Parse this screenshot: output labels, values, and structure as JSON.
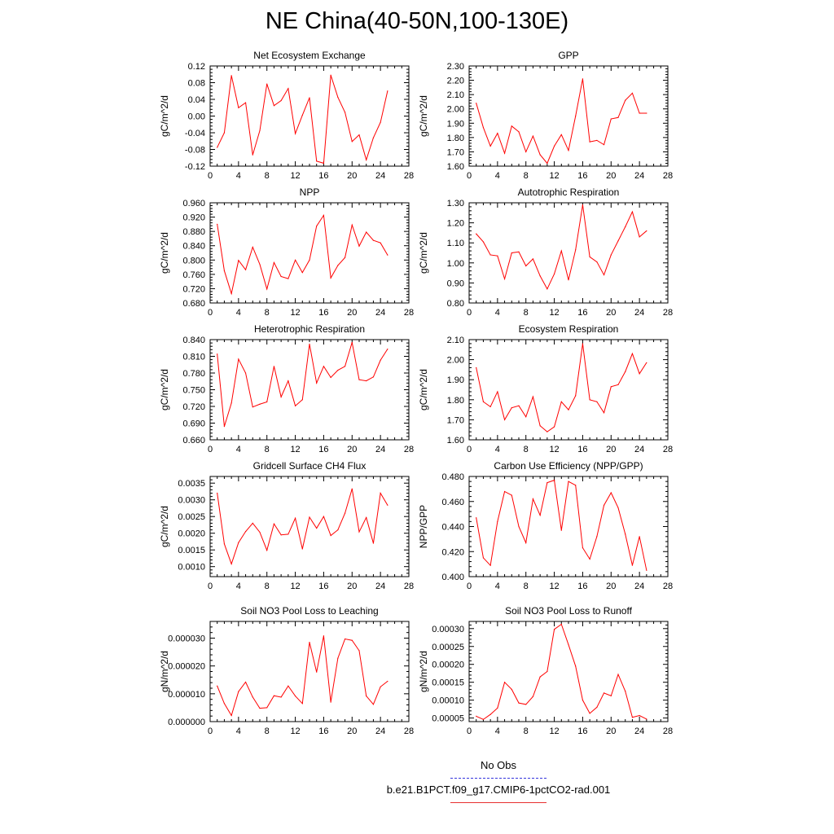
{
  "page": {
    "title": "NE China(40-50N,100-130E)"
  },
  "legend": {
    "items": [
      {
        "label": "No Obs",
        "color": "#3333dd",
        "style": "dashed"
      },
      {
        "label": "b.e21.B1PCT.f09_g17.CMIP6-1pctCO2-rad.001",
        "color": "#ff0000",
        "style": "solid"
      }
    ]
  },
  "chart_data": [
    {
      "type": "line",
      "title": "Net Ecosystem Exchange",
      "xlabel": "",
      "ylabel": "gC/m^2/d",
      "xlim": [
        0,
        28
      ],
      "xticks": [
        "0",
        "4",
        "8",
        "12",
        "16",
        "20",
        "24",
        "28"
      ],
      "ylim": [
        -0.12,
        0.12
      ],
      "yticks": [
        "-0.12",
        "-0.08",
        "-0.04",
        "0.00",
        "0.04",
        "0.08",
        "0.12"
      ],
      "x": [
        1,
        2,
        3,
        4,
        5,
        6,
        7,
        8,
        9,
        10,
        11,
        12,
        13,
        14,
        15,
        16,
        17,
        18,
        19,
        20,
        21,
        22,
        23,
        24,
        25
      ],
      "series": [
        {
          "color": "#ff0000",
          "values": [
            -0.075,
            -0.04,
            0.097,
            0.02,
            0.032,
            -0.093,
            -0.035,
            0.077,
            0.025,
            0.037,
            0.066,
            -0.042,
            0.002,
            0.044,
            -0.108,
            -0.113,
            0.098,
            0.045,
            0.009,
            -0.061,
            -0.045,
            -0.105,
            -0.052,
            -0.015,
            0.06
          ]
        }
      ]
    },
    {
      "type": "line",
      "title": "GPP",
      "xlabel": "",
      "ylabel": "gC/m^2/d",
      "xlim": [
        0,
        28
      ],
      "xticks": [
        "0",
        "4",
        "8",
        "12",
        "16",
        "20",
        "24",
        "28"
      ],
      "ylim": [
        1.6,
        2.3
      ],
      "yticks": [
        "1.60",
        "1.70",
        "1.80",
        "1.90",
        "2.00",
        "2.10",
        "2.20",
        "2.30"
      ],
      "x": [
        1,
        2,
        3,
        4,
        5,
        6,
        7,
        8,
        9,
        10,
        11,
        12,
        13,
        14,
        15,
        16,
        17,
        18,
        19,
        20,
        21,
        22,
        23,
        24,
        25
      ],
      "series": [
        {
          "color": "#ff0000",
          "values": [
            2.04,
            1.87,
            1.74,
            1.83,
            1.69,
            1.88,
            1.84,
            1.7,
            1.81,
            1.68,
            1.62,
            1.74,
            1.82,
            1.71,
            1.95,
            2.21,
            1.77,
            1.78,
            1.75,
            1.93,
            1.94,
            2.06,
            2.11,
            1.97,
            1.97
          ]
        }
      ]
    },
    {
      "type": "line",
      "title": "NPP",
      "xlabel": "",
      "ylabel": "gC/m^2/d",
      "xlim": [
        0,
        28
      ],
      "xticks": [
        "0",
        "4",
        "8",
        "12",
        "16",
        "20",
        "24",
        "28"
      ],
      "ylim": [
        0.68,
        0.96
      ],
      "yticks": [
        "0.680",
        "0.720",
        "0.760",
        "0.800",
        "0.840",
        "0.880",
        "0.920",
        "0.960"
      ],
      "x": [
        1,
        2,
        3,
        4,
        5,
        6,
        7,
        8,
        9,
        10,
        11,
        12,
        13,
        14,
        15,
        16,
        17,
        18,
        19,
        20,
        21,
        22,
        23,
        24,
        25
      ],
      "series": [
        {
          "color": "#ff0000",
          "values": [
            0.9,
            0.77,
            0.706,
            0.799,
            0.773,
            0.836,
            0.788,
            0.719,
            0.793,
            0.754,
            0.748,
            0.8,
            0.765,
            0.8,
            0.895,
            0.925,
            0.75,
            0.785,
            0.807,
            0.898,
            0.839,
            0.878,
            0.855,
            0.848,
            0.814
          ]
        }
      ]
    },
    {
      "type": "line",
      "title": "Autotrophic Respiration",
      "xlabel": "",
      "ylabel": "gC/m^2/d",
      "xlim": [
        0,
        28
      ],
      "xticks": [
        "0",
        "4",
        "8",
        "12",
        "16",
        "20",
        "24",
        "28"
      ],
      "ylim": [
        0.8,
        1.3
      ],
      "yticks": [
        "0.80",
        "0.90",
        "1.00",
        "1.10",
        "1.20",
        "1.30"
      ],
      "x": [
        1,
        2,
        3,
        4,
        5,
        6,
        7,
        8,
        9,
        10,
        11,
        12,
        13,
        14,
        15,
        16,
        17,
        18,
        19,
        20,
        21,
        22,
        23,
        24,
        25
      ],
      "series": [
        {
          "color": "#ff0000",
          "values": [
            1.145,
            1.105,
            1.04,
            1.035,
            0.92,
            1.05,
            1.055,
            0.985,
            1.02,
            0.935,
            0.87,
            0.945,
            1.06,
            0.915,
            1.065,
            1.29,
            1.03,
            1.005,
            0.94,
            1.04,
            1.11,
            1.18,
            1.255,
            1.13,
            1.16
          ]
        }
      ]
    },
    {
      "type": "line",
      "title": "Heterotrophic Respiration",
      "xlabel": "",
      "ylabel": "gC/m^2/d",
      "xlim": [
        0,
        28
      ],
      "xticks": [
        "0",
        "4",
        "8",
        "12",
        "16",
        "20",
        "24",
        "28"
      ],
      "ylim": [
        0.66,
        0.84
      ],
      "yticks": [
        "0.660",
        "0.690",
        "0.720",
        "0.750",
        "0.780",
        "0.810",
        "0.840"
      ],
      "x": [
        1,
        2,
        3,
        4,
        5,
        6,
        7,
        8,
        9,
        10,
        11,
        12,
        13,
        14,
        15,
        16,
        17,
        18,
        19,
        20,
        21,
        22,
        23,
        24,
        25
      ],
      "series": [
        {
          "color": "#ff0000",
          "values": [
            0.814,
            0.684,
            0.726,
            0.805,
            0.78,
            0.719,
            0.724,
            0.728,
            0.792,
            0.737,
            0.766,
            0.721,
            0.732,
            0.832,
            0.762,
            0.792,
            0.772,
            0.785,
            0.792,
            0.835,
            0.768,
            0.766,
            0.773,
            0.803,
            0.823
          ]
        }
      ]
    },
    {
      "type": "line",
      "title": "Ecosystem Respiration",
      "xlabel": "",
      "ylabel": "gC/m^2/d",
      "xlim": [
        0,
        28
      ],
      "xticks": [
        "0",
        "4",
        "8",
        "12",
        "16",
        "20",
        "24",
        "28"
      ],
      "ylim": [
        1.6,
        2.1
      ],
      "yticks": [
        "1.60",
        "1.70",
        "1.80",
        "1.90",
        "2.00",
        "2.10"
      ],
      "x": [
        1,
        2,
        3,
        4,
        5,
        6,
        7,
        8,
        9,
        10,
        11,
        12,
        13,
        14,
        15,
        16,
        17,
        18,
        19,
        20,
        21,
        22,
        23,
        24,
        25
      ],
      "series": [
        {
          "color": "#ff0000",
          "values": [
            1.96,
            1.79,
            1.765,
            1.84,
            1.7,
            1.76,
            1.77,
            1.715,
            1.815,
            1.67,
            1.64,
            1.665,
            1.79,
            1.75,
            1.82,
            2.08,
            1.8,
            1.79,
            1.735,
            1.865,
            1.875,
            1.94,
            2.03,
            1.93,
            1.985
          ]
        }
      ]
    },
    {
      "type": "line",
      "title": "Gridcell Surface CH4 Flux",
      "xlabel": "",
      "ylabel": "gC/m^2/d",
      "xlim": [
        0,
        28
      ],
      "xticks": [
        "0",
        "4",
        "8",
        "12",
        "16",
        "20",
        "24",
        "28"
      ],
      "ylim": [
        0.0007,
        0.0037
      ],
      "yticks": [
        "0.0010",
        "0.0015",
        "0.0020",
        "0.0025",
        "0.0030",
        "0.0035"
      ],
      "x": [
        1,
        2,
        3,
        4,
        5,
        6,
        7,
        8,
        9,
        10,
        11,
        12,
        13,
        14,
        15,
        16,
        17,
        18,
        19,
        20,
        21,
        22,
        23,
        24,
        25
      ],
      "series": [
        {
          "color": "#ff0000",
          "values": [
            0.0032,
            0.00168,
            0.00108,
            0.00172,
            0.00205,
            0.0023,
            0.00203,
            0.00149,
            0.00228,
            0.00195,
            0.00197,
            0.00245,
            0.00153,
            0.00248,
            0.00215,
            0.0025,
            0.00193,
            0.0021,
            0.0026,
            0.00333,
            0.00204,
            0.00247,
            0.0017,
            0.0032,
            0.00284
          ]
        }
      ]
    },
    {
      "type": "line",
      "title": "Carbon Use Efficiency (NPP/GPP)",
      "xlabel": "",
      "ylabel": "NPP/GPP",
      "xlim": [
        0,
        28
      ],
      "xticks": [
        "0",
        "4",
        "8",
        "12",
        "16",
        "20",
        "24",
        "28"
      ],
      "ylim": [
        0.4,
        0.48
      ],
      "yticks": [
        "0.400",
        "0.420",
        "0.440",
        "0.460",
        "0.480"
      ],
      "x": [
        1,
        2,
        3,
        4,
        5,
        6,
        7,
        8,
        9,
        10,
        11,
        12,
        13,
        14,
        15,
        16,
        17,
        18,
        19,
        20,
        21,
        22,
        23,
        24,
        25
      ],
      "series": [
        {
          "color": "#ff0000",
          "values": [
            0.447,
            0.415,
            0.409,
            0.444,
            0.468,
            0.465,
            0.44,
            0.427,
            0.462,
            0.449,
            0.475,
            0.477,
            0.437,
            0.476,
            0.473,
            0.423,
            0.414,
            0.432,
            0.457,
            0.467,
            0.455,
            0.434,
            0.409,
            0.432,
            0.405
          ]
        }
      ]
    },
    {
      "type": "line",
      "title": "Soil NO3 Pool Loss to Leaching",
      "xlabel": "",
      "ylabel": "gN/m^2/d",
      "xlim": [
        0,
        28
      ],
      "xticks": [
        "0",
        "4",
        "8",
        "12",
        "16",
        "20",
        "24",
        "28"
      ],
      "ylim": [
        0,
        3.6e-05
      ],
      "yticks": [
        "0.000000",
        "0.000010",
        "0.000020",
        "0.000030"
      ],
      "x": [
        1,
        2,
        3,
        4,
        5,
        6,
        7,
        8,
        9,
        10,
        11,
        12,
        13,
        14,
        15,
        16,
        17,
        18,
        19,
        20,
        21,
        22,
        23,
        24,
        25
      ],
      "series": [
        {
          "color": "#ff0000",
          "values": [
            1.28e-05,
            6.5e-06,
            2.2e-06,
            1.08e-05,
            1.42e-05,
            8.8e-06,
            4.8e-06,
            5e-06,
            9.3e-06,
            8.8e-06,
            1.28e-05,
            9.2e-06,
            6.5e-06,
            2.85e-05,
            1.78e-05,
            3.08e-05,
            7e-06,
            2.28e-05,
            2.97e-05,
            2.92e-05,
            2.55e-05,
            9.2e-06,
            6.2e-06,
            1.25e-05,
            1.45e-05
          ]
        }
      ]
    },
    {
      "type": "line",
      "title": "Soil NO3 Pool Loss to Runoff",
      "xlabel": "",
      "ylabel": "gN/m^2/d",
      "xlim": [
        0,
        28
      ],
      "xticks": [
        "0",
        "4",
        "8",
        "12",
        "16",
        "20",
        "24",
        "28"
      ],
      "ylim": [
        4e-05,
        0.00032
      ],
      "yticks": [
        "0.00005",
        "0.00010",
        "0.00015",
        "0.00020",
        "0.00025",
        "0.00030"
      ],
      "x": [
        1,
        2,
        3,
        4,
        5,
        6,
        7,
        8,
        9,
        10,
        11,
        12,
        13,
        14,
        15,
        16,
        17,
        18,
        19,
        20,
        21,
        22,
        23,
        24,
        25
      ],
      "series": [
        {
          "color": "#ff0000",
          "values": [
            5.5e-05,
            4.6e-05,
            6e-05,
            7.8e-05,
            0.00015,
            0.00013,
            9.2e-05,
            8.8e-05,
            0.00011,
            0.000165,
            0.00018,
            0.000298,
            0.000312,
            0.000255,
            0.000195,
            0.0001,
            6.3e-05,
            8e-05,
            0.00012,
            0.000112,
            0.000172,
            0.000125,
            5.2e-05,
            5.7e-05,
            4.7e-05
          ]
        }
      ]
    }
  ]
}
